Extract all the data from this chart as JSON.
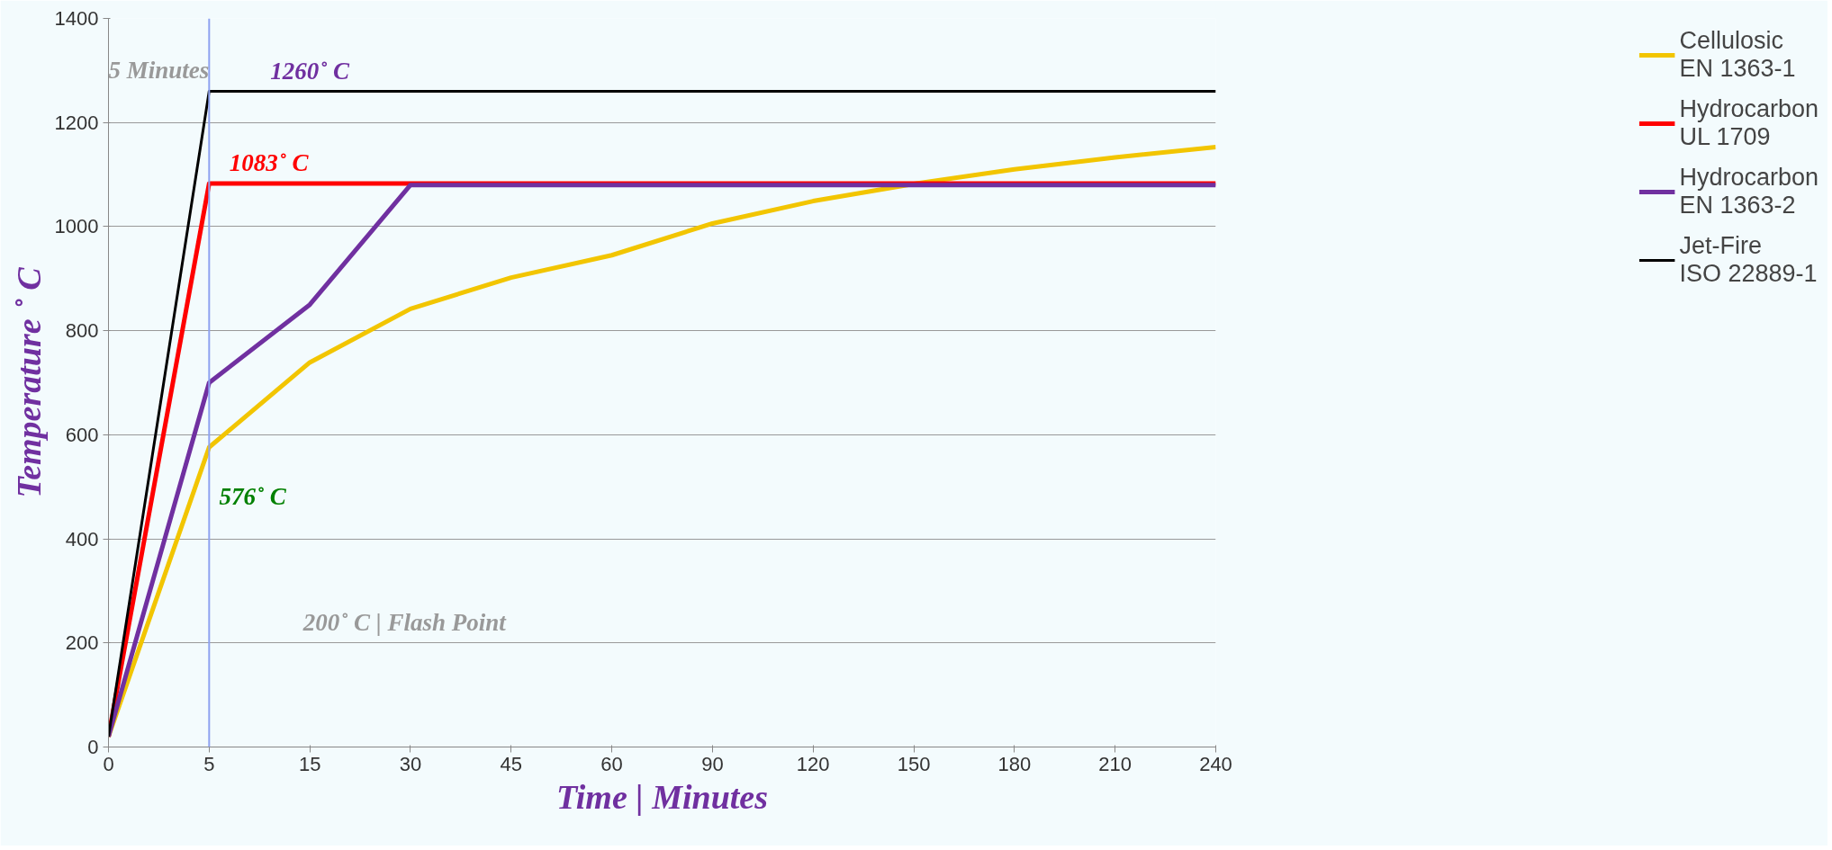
{
  "chart_data": {
    "type": "line",
    "xlabel": "Time | Minutes",
    "ylabel": "Temperature ˚ C",
    "categories": [
      "0",
      "5",
      "15",
      "30",
      "45",
      "60",
      "90",
      "120",
      "150",
      "180",
      "210",
      "240"
    ],
    "ylim": [
      0,
      1400
    ],
    "yticks": [
      0,
      200,
      400,
      600,
      800,
      1000,
      1200,
      1400
    ],
    "grid": "y",
    "legend": "right",
    "marker": "none",
    "line_style": "solid",
    "series": [
      {
        "name": "Cellulosic\nEN 1363-1",
        "color": "#f2c500",
        "values": [
          20,
          576,
          739,
          842,
          902,
          945,
          1006,
          1049,
          1082,
          1110,
          1133,
          1153
        ]
      },
      {
        "name": "Hydrocarbon\nUL 1709",
        "color": "#ff0000",
        "values": [
          20,
          1083,
          1083,
          1083,
          1083,
          1083,
          1083,
          1083,
          1083,
          1083,
          1083,
          1083
        ]
      },
      {
        "name": "Hydrocarbon\nEN 1363-2",
        "color": "#7030a0",
        "values": [
          20,
          700,
          850,
          1080,
          1080,
          1080,
          1080,
          1080,
          1080,
          1080,
          1080,
          1080
        ]
      },
      {
        "name": "Jet-Fire\nISO 22889-1",
        "color": "#000000",
        "values": [
          20,
          1260,
          1260,
          1260,
          1260,
          1260,
          1260,
          1260,
          1260,
          1260,
          1260,
          1260
        ]
      }
    ],
    "ref_lines": [
      {
        "axis": "x",
        "value": "5",
        "label": null,
        "color": "#8ea2f0"
      }
    ],
    "annotations": [
      {
        "text": "5 Minutes",
        "x": "5",
        "y": 1340
      },
      {
        "text": "1260˚ C",
        "x": "15",
        "y": 1260
      },
      {
        "text": "1083˚ C",
        "x": "5",
        "y": 1083
      },
      {
        "text": "576˚ C",
        "x": "5",
        "y": 576
      },
      "200˚ C  |  Flash Point"
    ]
  }
}
